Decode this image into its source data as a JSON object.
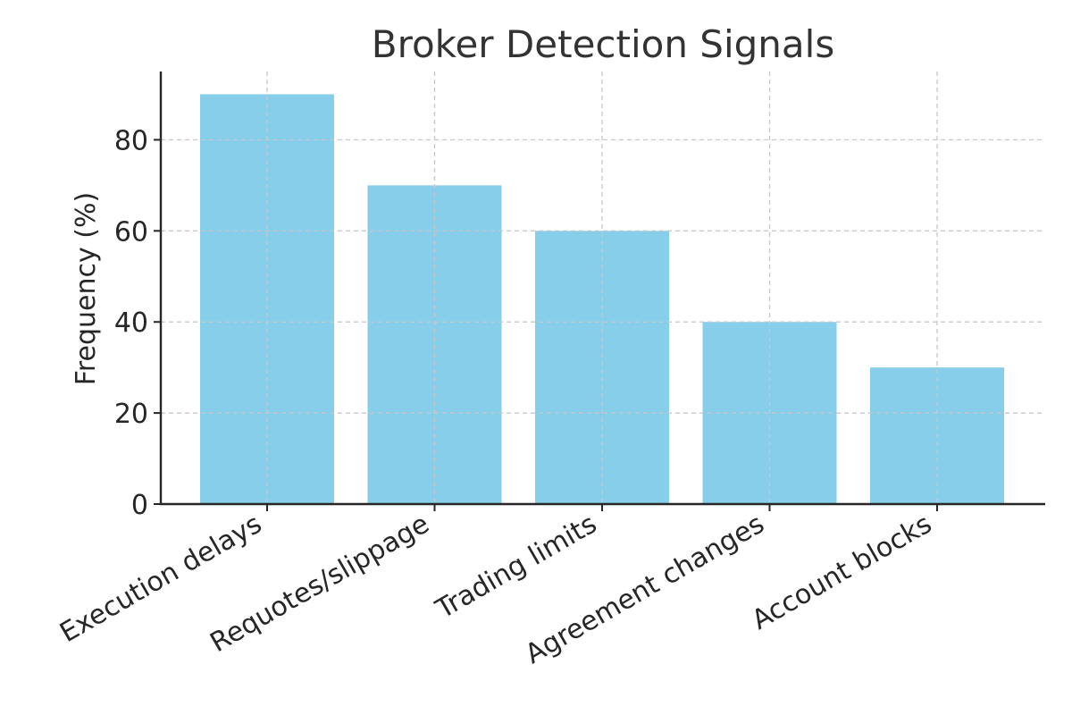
{
  "chart_data": {
    "type": "bar",
    "title": "Broker Detection Signals",
    "xlabel": "",
    "ylabel": "Frequency (%)",
    "categories": [
      "Execution delays",
      "Requotes/slippage",
      "Trading limits",
      "Agreement changes",
      "Account blocks"
    ],
    "values": [
      90,
      70,
      60,
      40,
      30
    ],
    "ylim": [
      0,
      95
    ],
    "yticks": [
      0,
      20,
      40,
      60,
      80
    ],
    "grid": true,
    "legend": "none",
    "bar_color": "#87CEEB",
    "axis_color": "#262626",
    "grid_color": "#c8c8c8"
  }
}
